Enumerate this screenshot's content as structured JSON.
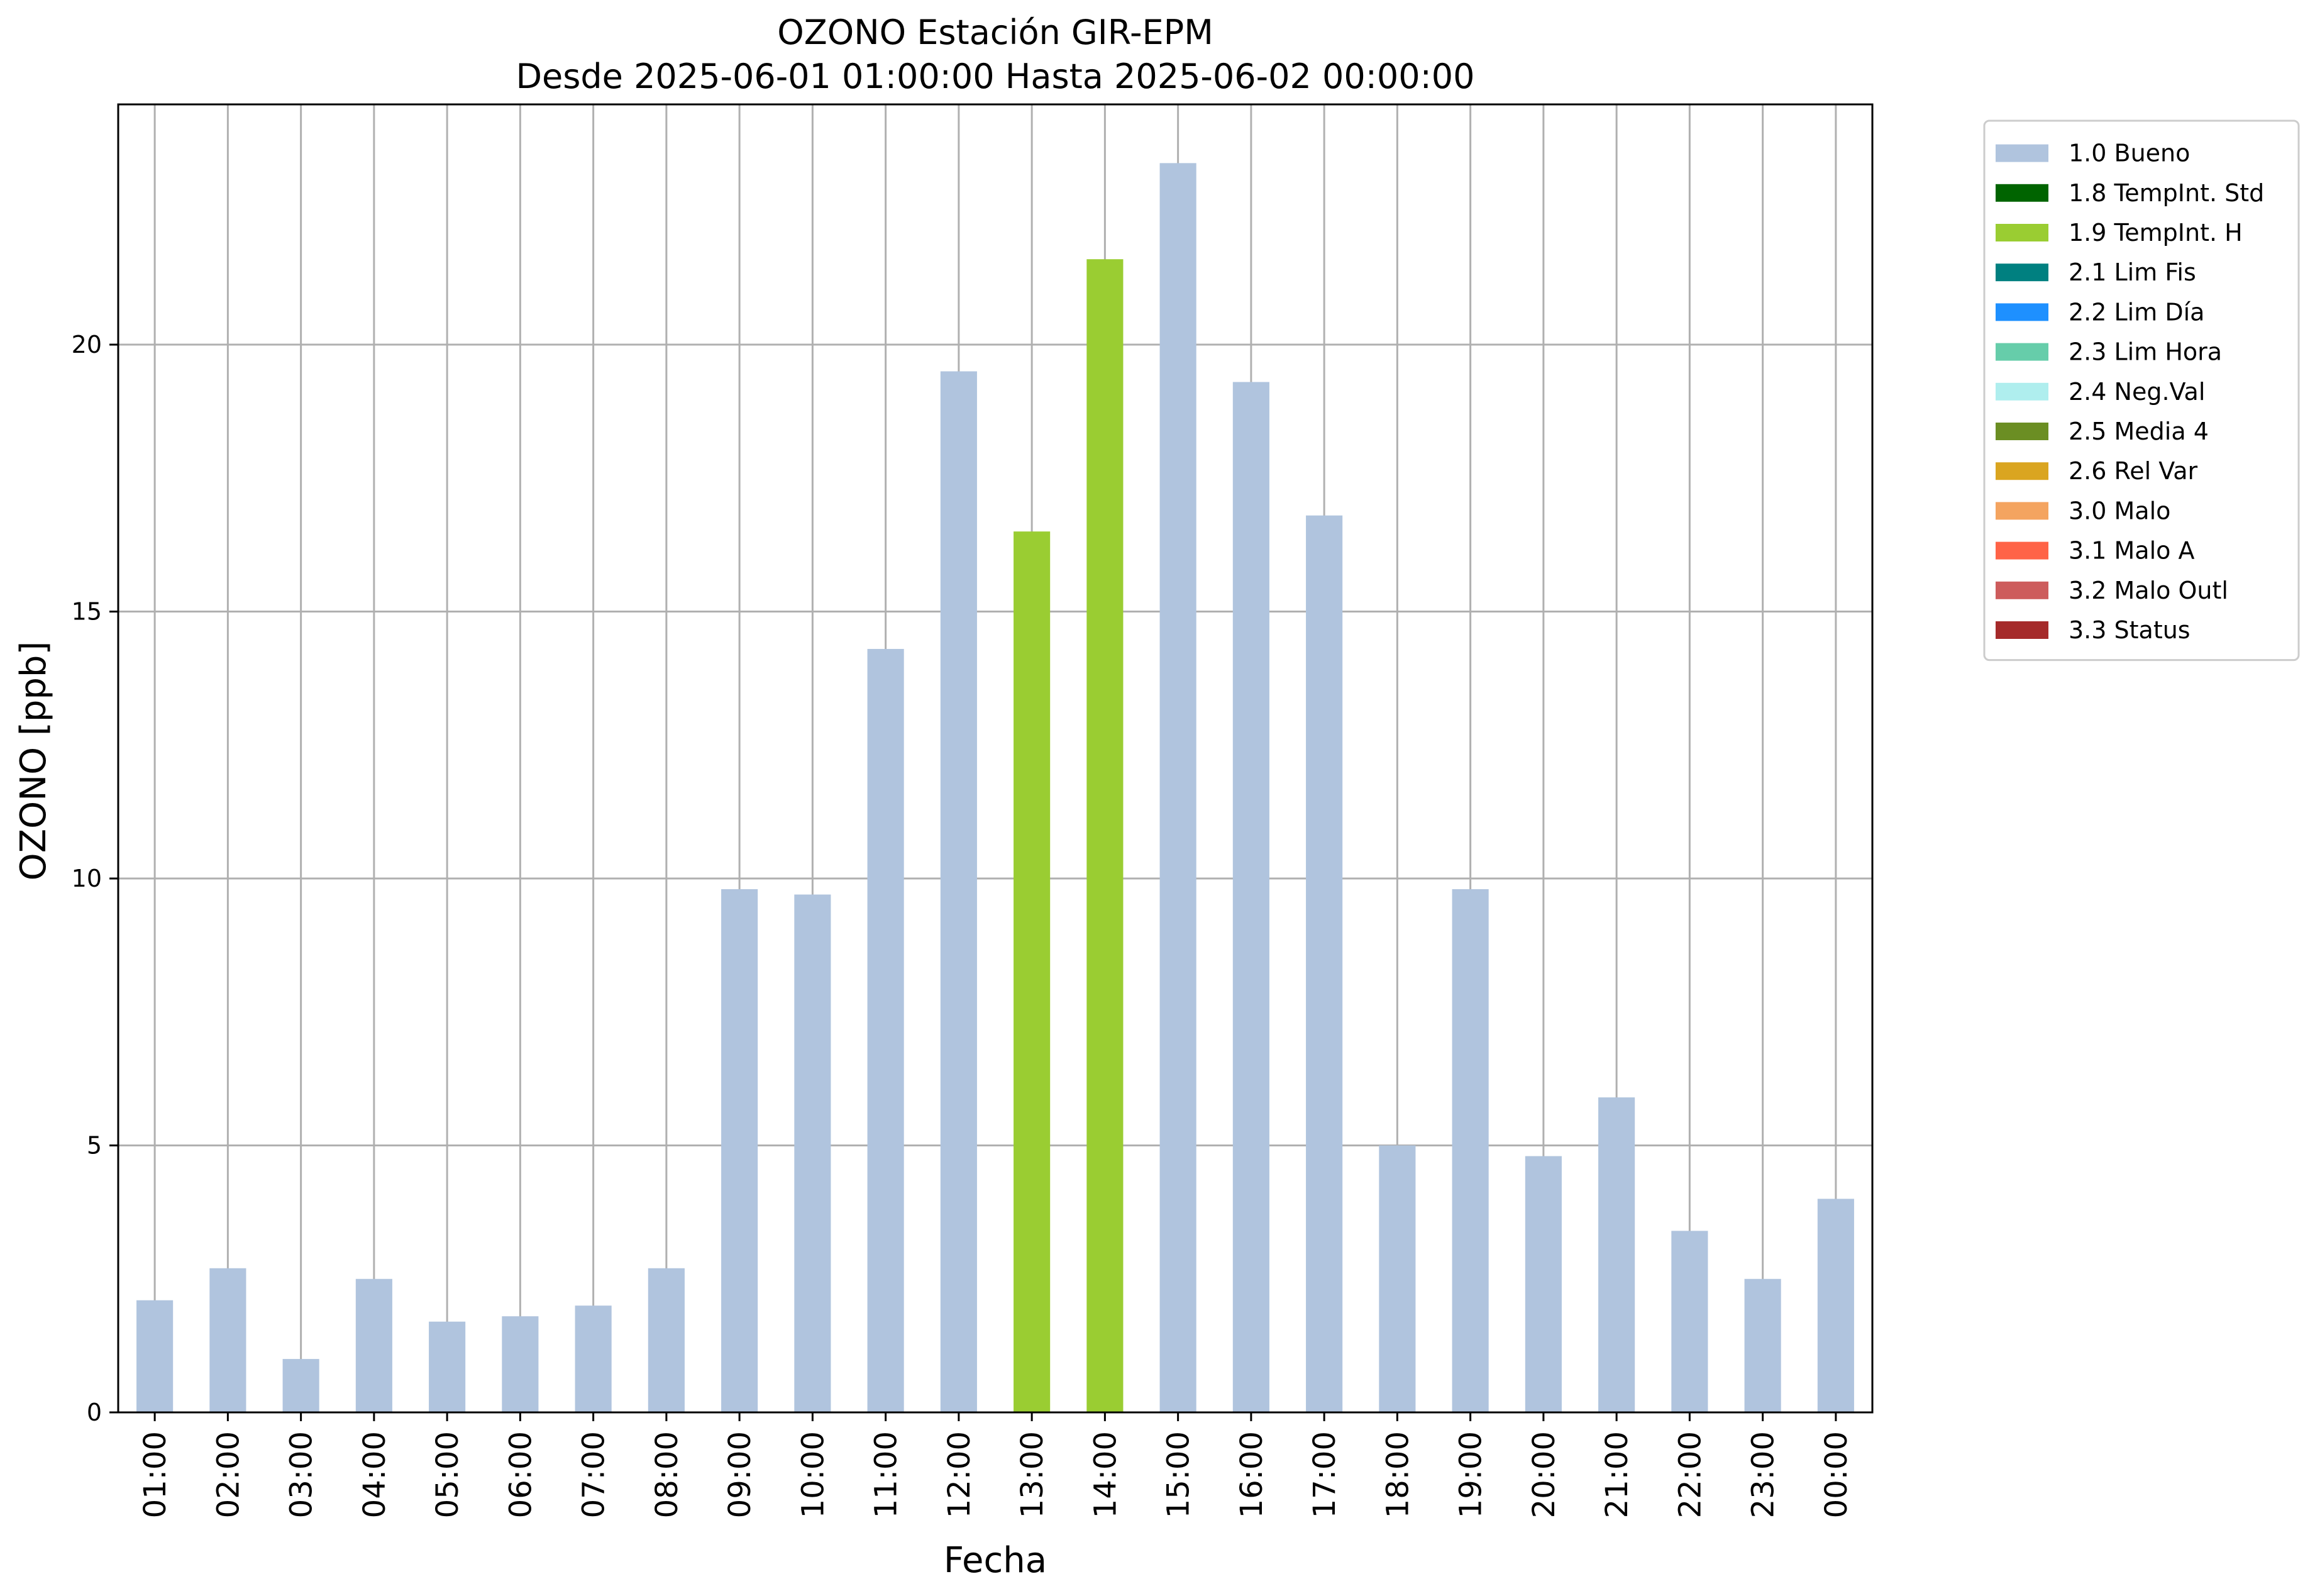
{
  "chart_data": {
    "type": "bar",
    "title_line1": "OZONO Estación GIR-EPM",
    "title_line2": "Desde 2025-06-01 01:00:00 Hasta 2025-06-02 00:00:00",
    "xlabel": "Fecha",
    "ylabel": "OZONO [ppb]",
    "ylim": [
      0,
      24.5
    ],
    "yticks": [
      0,
      5,
      10,
      15,
      20
    ],
    "grid": true,
    "legend_position": "outside-top-right",
    "categories": [
      "01:00",
      "02:00",
      "03:00",
      "04:00",
      "05:00",
      "06:00",
      "07:00",
      "08:00",
      "09:00",
      "10:00",
      "11:00",
      "12:00",
      "13:00",
      "14:00",
      "15:00",
      "16:00",
      "17:00",
      "18:00",
      "19:00",
      "20:00",
      "21:00",
      "22:00",
      "23:00",
      "00:00"
    ],
    "values": [
      2.1,
      2.7,
      1.0,
      2.5,
      1.7,
      1.8,
      2.0,
      2.7,
      9.8,
      9.7,
      14.3,
      19.5,
      16.5,
      21.6,
      23.4,
      19.3,
      16.8,
      5.0,
      9.8,
      4.8,
      5.9,
      3.4,
      2.5,
      4.0
    ],
    "flags": [
      "1.0 Bueno",
      "1.0 Bueno",
      "1.0 Bueno",
      "1.0 Bueno",
      "1.0 Bueno",
      "1.0 Bueno",
      "1.0 Bueno",
      "1.0 Bueno",
      "1.0 Bueno",
      "1.0 Bueno",
      "1.0 Bueno",
      "1.0 Bueno",
      "1.9 TempInt. H",
      "1.9 TempInt. H",
      "1.0 Bueno",
      "1.0 Bueno",
      "1.0 Bueno",
      "1.0 Bueno",
      "1.0 Bueno",
      "1.0 Bueno",
      "1.0 Bueno",
      "1.0 Bueno",
      "1.0 Bueno",
      "1.0 Bueno"
    ],
    "legend": [
      {
        "label": "1.0 Bueno",
        "color": "#b0c4de"
      },
      {
        "label": "1.8 TempInt. Std",
        "color": "#006400"
      },
      {
        "label": "1.9 TempInt. H",
        "color": "#9acd32"
      },
      {
        "label": "2.1 Lim Fis",
        "color": "#008080"
      },
      {
        "label": "2.2 Lim Día",
        "color": "#1e90ff"
      },
      {
        "label": "2.3 Lim Hora",
        "color": "#66cdaa"
      },
      {
        "label": "2.4 Neg.Val",
        "color": "#afeeee"
      },
      {
        "label": "2.5 Media 4",
        "color": "#6b8e23"
      },
      {
        "label": "2.6 Rel Var",
        "color": "#daa520"
      },
      {
        "label": "3.0 Malo",
        "color": "#f4a460"
      },
      {
        "label": "3.1 Malo A",
        "color": "#ff6347"
      },
      {
        "label": "3.2 Malo Outl",
        "color": "#cd5c5c"
      },
      {
        "label": "3.3 Status",
        "color": "#a52a2a"
      }
    ]
  }
}
